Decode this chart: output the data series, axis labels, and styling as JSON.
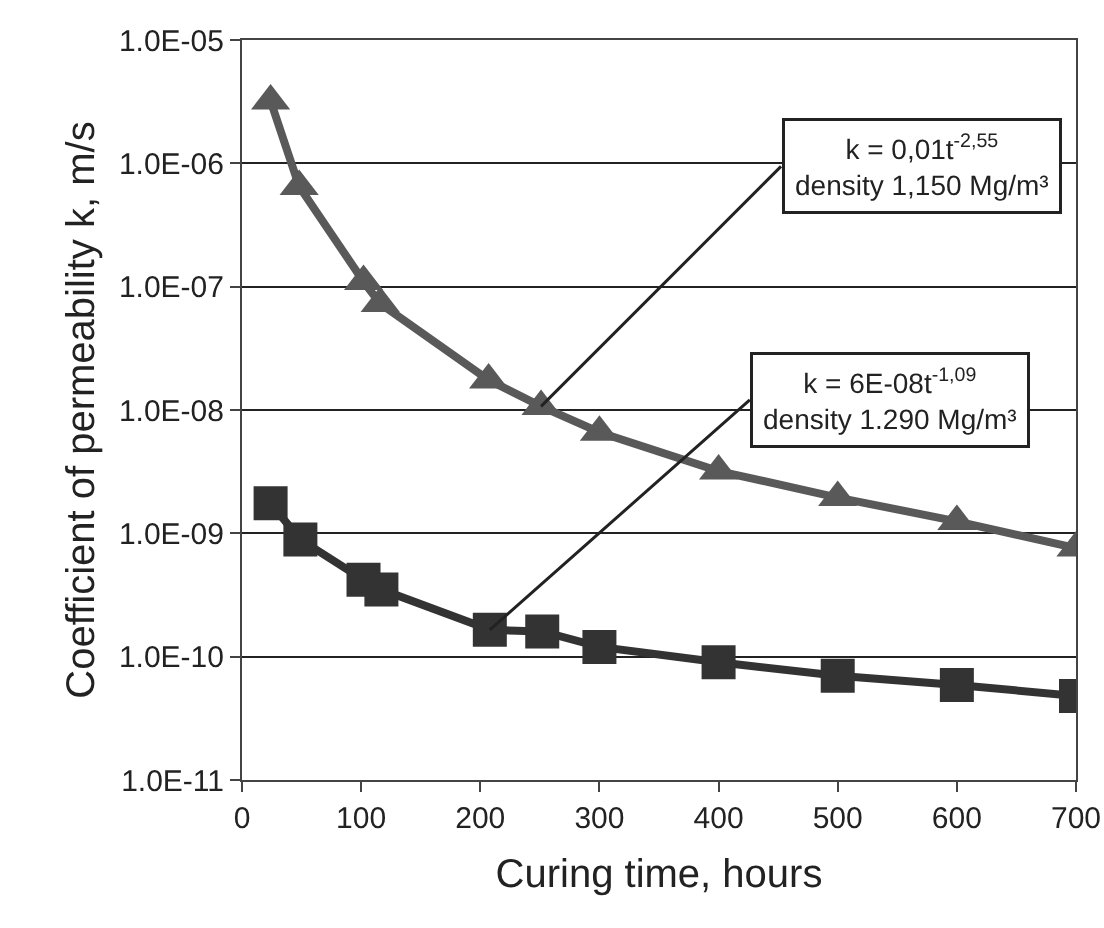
{
  "chart_data": {
    "type": "line",
    "xlabel": "Curing time, hours",
    "ylabel": "Coefficient of permeability k, m/s",
    "x": [
      24,
      48,
      102,
      116,
      207,
      251,
      300,
      400,
      500,
      600,
      700
    ],
    "series": [
      {
        "color": "#595959",
        "marker": "triangle",
        "values": [
          3.2e-06,
          6.5e-07,
          1.1e-07,
          7.3e-08,
          1.75e-08,
          1.07e-08,
          6.6e-09,
          3.2e-09,
          1.95e-09,
          1.25e-09,
          7.6e-10
        ]
      },
      {
        "color": "#333333",
        "marker": "square",
        "x": [
          24,
          49,
          102,
          117,
          208,
          252,
          300,
          400,
          500,
          600,
          700
        ],
        "values": [
          1.75e-09,
          8.9e-10,
          4.2e-10,
          3.5e-10,
          1.65e-10,
          1.6e-10,
          1.2e-10,
          9e-11,
          7e-11,
          5.9e-11,
          4.8e-11
        ]
      }
    ],
    "log": "y",
    "xlim": [
      0,
      700
    ],
    "xticks": [
      0,
      100,
      200,
      300,
      400,
      500,
      600,
      700
    ],
    "ylim": [
      1e-11,
      1e-05
    ],
    "yticks": [
      {
        "value": 1e-11,
        "label": "1.0E-11"
      },
      {
        "value": 1e-10,
        "label": "1.0E-10"
      },
      {
        "value": 1e-09,
        "label": "1.0E-09"
      },
      {
        "value": 1e-08,
        "label": "1.0E-08"
      },
      {
        "value": 1e-07,
        "label": "1.0E-07"
      },
      {
        "value": 1e-06,
        "label": "1.0E-06"
      },
      {
        "value": 1e-05,
        "label": "1.0E-05"
      }
    ],
    "grid": "y",
    "annotations": [
      {
        "text": "k = 0,01t$^{-2,55}$\ndensity 1,150 Mg/m³",
        "x": 251,
        "y": 1.07e-08
      },
      {
        "text": "k = 6E-08t$^{-1,09}$\ndensity 1.290 Mg/m³",
        "x": 208,
        "y": 1.65e-10
      }
    ]
  }
}
